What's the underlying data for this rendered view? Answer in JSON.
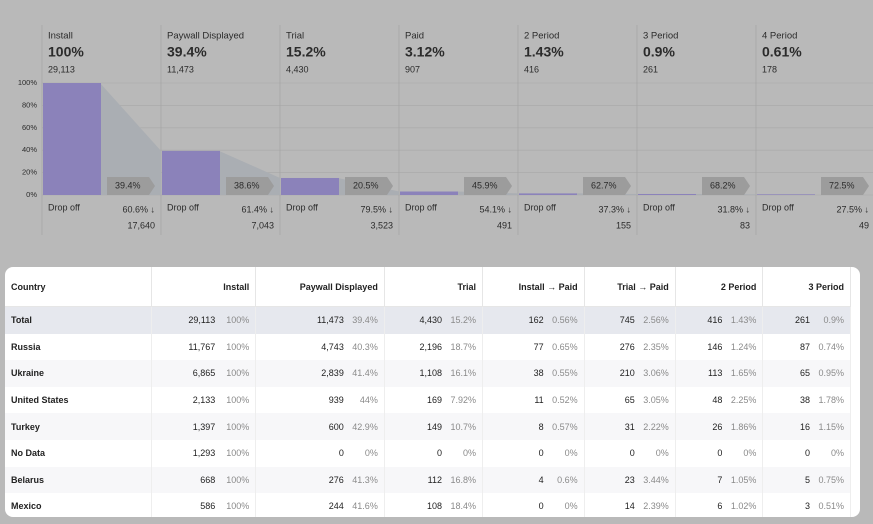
{
  "chart_data": {
    "type": "bar",
    "categories": [
      "Install",
      "Paywall Displayed",
      "Trial",
      "Paid",
      "2 Period",
      "3 Period",
      "4 Period"
    ],
    "values": [
      100,
      39.4,
      15.2,
      3.12,
      1.43,
      0.9,
      0.61
    ],
    "value_labels": [
      "100%",
      "39.4%",
      "15.2%",
      "3.12%",
      "1.43%",
      "0.9%",
      "0.61%"
    ],
    "counts": [
      "29,113",
      "11,473",
      "4,430",
      "907",
      "416",
      "261",
      "178"
    ],
    "conversion_labels": [
      "39.4%",
      "38.6%",
      "20.5%",
      "45.9%",
      "62.7%",
      "68.2%",
      "72.5%"
    ],
    "drop_off_label": "Drop off",
    "drop_off_percents": [
      "60.6% ↓",
      "61.4% ↓",
      "79.5% ↓",
      "54.1% ↓",
      "37.3% ↓",
      "31.8% ↓",
      "27.5% ↓"
    ],
    "drop_off_counts": [
      "17,640",
      "7,043",
      "3,523",
      "491",
      "155",
      "83",
      "49"
    ],
    "color": "#8b82ba",
    "ylim": [
      0,
      100
    ],
    "yticks": [
      {
        "value": 0,
        "label": "0%"
      },
      {
        "value": 20,
        "label": "20%"
      },
      {
        "value": 40,
        "label": "40%"
      },
      {
        "value": 60,
        "label": "60%"
      },
      {
        "value": 80,
        "label": "80%"
      },
      {
        "value": 100,
        "label": "100%"
      }
    ],
    "grid": true
  },
  "table": {
    "columns": [
      "Country",
      "Install",
      "Paywall Displayed",
      "Trial",
      "Install → Paid",
      "Trial → Paid",
      "2 Period",
      "3 Period"
    ],
    "rows": [
      [
        "Total",
        "29,113",
        "100%",
        "11,473",
        "39.4%",
        "4,430",
        "15.2%",
        "162",
        "0.56%",
        "745",
        "2.56%",
        "416",
        "1.43%",
        "261",
        "0.9%"
      ],
      [
        "Russia",
        "11,767",
        "100%",
        "4,743",
        "40.3%",
        "2,196",
        "18.7%",
        "77",
        "0.65%",
        "276",
        "2.35%",
        "146",
        "1.24%",
        "87",
        "0.74%"
      ],
      [
        "Ukraine",
        "6,865",
        "100%",
        "2,839",
        "41.4%",
        "1,108",
        "16.1%",
        "38",
        "0.55%",
        "210",
        "3.06%",
        "113",
        "1.65%",
        "65",
        "0.95%"
      ],
      [
        "United States",
        "2,133",
        "100%",
        "939",
        "44%",
        "169",
        "7.92%",
        "11",
        "0.52%",
        "65",
        "3.05%",
        "48",
        "2.25%",
        "38",
        "1.78%"
      ],
      [
        "Turkey",
        "1,397",
        "100%",
        "600",
        "42.9%",
        "149",
        "10.7%",
        "8",
        "0.57%",
        "31",
        "2.22%",
        "26",
        "1.86%",
        "16",
        "1.15%"
      ],
      [
        "No Data",
        "1,293",
        "100%",
        "0",
        "0%",
        "0",
        "0%",
        "0",
        "0%",
        "0",
        "0%",
        "0",
        "0%",
        "0",
        "0%"
      ],
      [
        "Belarus",
        "668",
        "100%",
        "276",
        "41.3%",
        "112",
        "16.8%",
        "4",
        "0.6%",
        "23",
        "3.44%",
        "7",
        "1.05%",
        "5",
        "0.75%"
      ],
      [
        "Mexico",
        "586",
        "100%",
        "244",
        "41.6%",
        "108",
        "18.4%",
        "0",
        "0%",
        "14",
        "2.39%",
        "6",
        "1.02%",
        "3",
        "0.51%"
      ]
    ]
  }
}
